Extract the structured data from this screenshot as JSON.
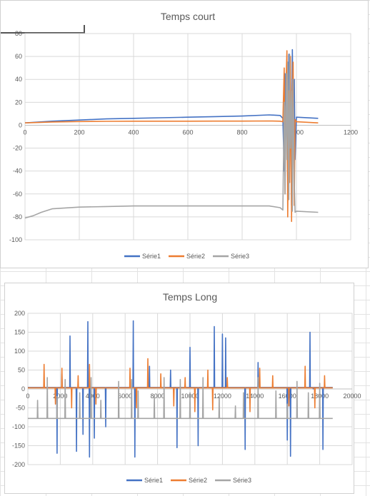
{
  "chart_data": [
    {
      "type": "line",
      "title": "Temps court",
      "xlim": [
        0,
        1200
      ],
      "ylim": [
        -100,
        80
      ],
      "x_ticks": [
        "0",
        "200",
        "400",
        "600",
        "800",
        "1000",
        "1200"
      ],
      "y_ticks": [
        "80",
        "60",
        "40",
        "20",
        "0",
        "-20",
        "-40",
        "-60",
        "-80",
        "-100"
      ],
      "grid": true,
      "legend_position": "bottom",
      "series": [
        {
          "name": "Série1",
          "color": "#4472c4",
          "x": [
            0,
            100,
            200,
            300,
            400,
            500,
            600,
            700,
            800,
            900,
            940,
            950,
            955,
            958,
            962,
            965,
            968,
            972,
            975,
            978,
            982,
            985,
            988,
            992,
            995,
            1000,
            1080
          ],
          "y": [
            2,
            3.5,
            4.5,
            5.5,
            6,
            6.5,
            7,
            7.5,
            8,
            9,
            8.5,
            6,
            -40,
            45,
            10,
            55,
            -60,
            62,
            5,
            50,
            -70,
            66,
            10,
            40,
            -30,
            7,
            6
          ]
        },
        {
          "name": "Série2",
          "color": "#ed7d31",
          "x": [
            0,
            100,
            200,
            300,
            400,
            500,
            600,
            700,
            800,
            900,
            940,
            950,
            955,
            958,
            962,
            965,
            968,
            972,
            975,
            978,
            982,
            985,
            988,
            992,
            995,
            1000,
            1080
          ],
          "y": [
            2,
            2.8,
            3.2,
            3.4,
            3.5,
            3.5,
            3.5,
            3.6,
            3.6,
            3.7,
            3.5,
            3,
            50,
            -60,
            40,
            65,
            -80,
            30,
            -50,
            60,
            -84,
            20,
            55,
            -70,
            5,
            3,
            2
          ]
        },
        {
          "name": "Série3",
          "color": "#a5a5a5",
          "x": [
            0,
            30,
            60,
            100,
            200,
            300,
            400,
            500,
            600,
            700,
            800,
            900,
            940,
            950,
            955,
            958,
            962,
            965,
            968,
            972,
            975,
            978,
            982,
            985,
            988,
            992,
            995,
            1000,
            1080
          ],
          "y": [
            -81,
            -79,
            -76,
            -73,
            -71.5,
            -71,
            -70.5,
            -70.5,
            -70.5,
            -70.5,
            -70.5,
            -70.5,
            -72,
            -74,
            20,
            -60,
            45,
            -30,
            55,
            -65,
            62,
            -20,
            30,
            -75,
            40,
            -50,
            -76,
            -75,
            -76
          ]
        }
      ]
    },
    {
      "type": "line",
      "title": "Temps Long",
      "xlim": [
        0,
        20000
      ],
      "ylim": [
        -200,
        200
      ],
      "x_ticks": [
        "0",
        "2000",
        "4000",
        "6000",
        "8000",
        "10000",
        "12000",
        "14000",
        "16000",
        "18000",
        "20000"
      ],
      "y_ticks": [
        "200",
        "150",
        "100",
        "50",
        "0",
        "-50",
        "-100",
        "-150",
        "-200"
      ],
      "grid": true,
      "legend_position": "bottom",
      "baselines": {
        "Série1": 4,
        "Série2": 3,
        "Série3": -78
      },
      "x_end": 18800,
      "series": [
        {
          "name": "Série1",
          "color": "#4472c4",
          "spikes_x": [
            1000,
            1800,
            2100,
            2600,
            3000,
            3400,
            3700,
            3800,
            4100,
            4800,
            6500,
            6600,
            7500,
            8800,
            9200,
            10000,
            10500,
            11500,
            12000,
            12200,
            13400,
            14200,
            16000,
            16200,
            17400,
            17600,
            18200
          ],
          "spikes_y": [
            10,
            -170,
            40,
            140,
            -165,
            -120,
            178,
            -180,
            -130,
            -100,
            180,
            -180,
            60,
            50,
            -155,
            110,
            -150,
            165,
            145,
            135,
            -160,
            70,
            -135,
            -178,
            150,
            0,
            -160
          ]
        },
        {
          "name": "Série2",
          "color": "#ed7d31",
          "spikes_x": [
            1000,
            1700,
            2100,
            2700,
            3100,
            3800,
            4200,
            6300,
            6700,
            7400,
            8200,
            9000,
            9700,
            10300,
            11100,
            11400,
            12300,
            13700,
            14300,
            15100,
            16100,
            17100,
            17700,
            18300
          ],
          "spikes_y": [
            65,
            -40,
            55,
            -50,
            35,
            65,
            -40,
            55,
            -50,
            80,
            40,
            -45,
            30,
            -60,
            50,
            -55,
            30,
            -60,
            55,
            35,
            -45,
            60,
            -50,
            35
          ]
        },
        {
          "name": "Série3",
          "color": "#a5a5a5",
          "spikes_x": [
            600,
            1200,
            1800,
            2300,
            3200,
            3900,
            4500,
            5600,
            6400,
            6800,
            7800,
            8400,
            9400,
            10000,
            10800,
            11800,
            12800,
            13300,
            14200,
            15300,
            16000,
            16600,
            17300,
            18000
          ],
          "spikes_y": [
            -30,
            30,
            -20,
            25,
            -10,
            30,
            -30,
            20,
            25,
            -5,
            -20,
            30,
            25,
            -10,
            30,
            -20,
            -45,
            -10,
            30,
            -5,
            -40,
            20,
            -10,
            15
          ]
        }
      ]
    }
  ]
}
